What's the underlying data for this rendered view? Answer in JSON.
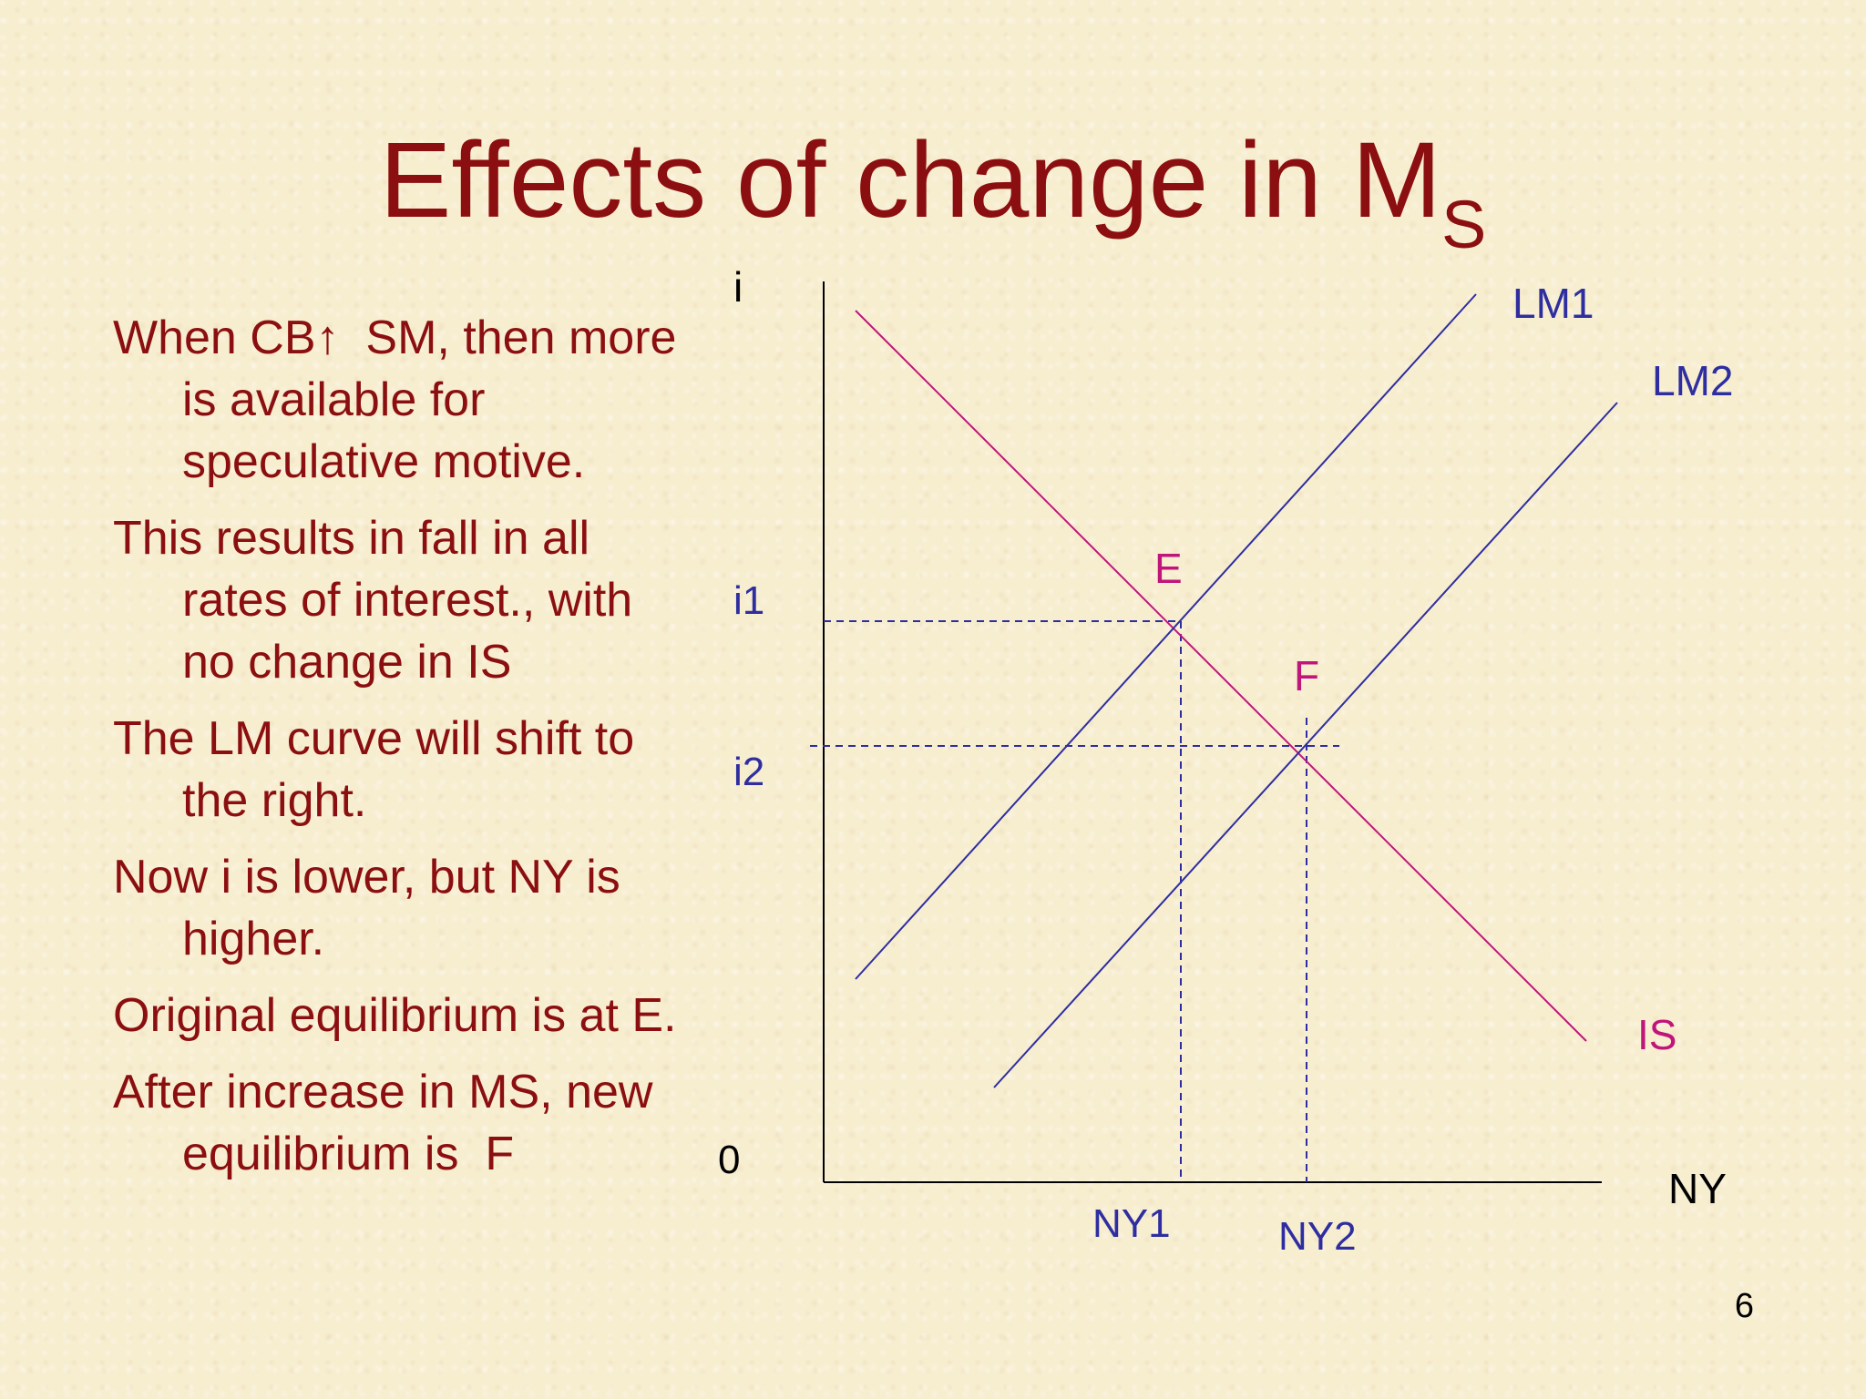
{
  "slide": {
    "title": "Effects of change in M",
    "title_subscript": "S",
    "page_number": "6"
  },
  "bullets": [
    "When CB↑  SM, then more is available for speculative motive.",
    "This results in fall in all rates of interest., with no change in IS",
    "The LM curve will shift to the right.",
    "Now i is lower, but NY is higher.",
    "Original equilibrium is at E.",
    "After increase in MS, new equilibrium is  F"
  ],
  "diagram": {
    "y_axis_label": "i",
    "x_axis_label": "NY",
    "origin_label": "0",
    "curves": {
      "lm1": "LM1",
      "lm2": "LM2",
      "is": "IS"
    },
    "points": {
      "e": "E",
      "f": "F"
    },
    "levels": {
      "i1": "i1",
      "i2": "i2",
      "ny1": "NY1",
      "ny2": "NY2"
    }
  },
  "colors": {
    "title": "#8b0f10",
    "text": "#8b0f10",
    "lm_curves": "#2e2ea0",
    "is_curve": "#c0157a",
    "axes": "#000000",
    "background": "#f7edcf"
  }
}
